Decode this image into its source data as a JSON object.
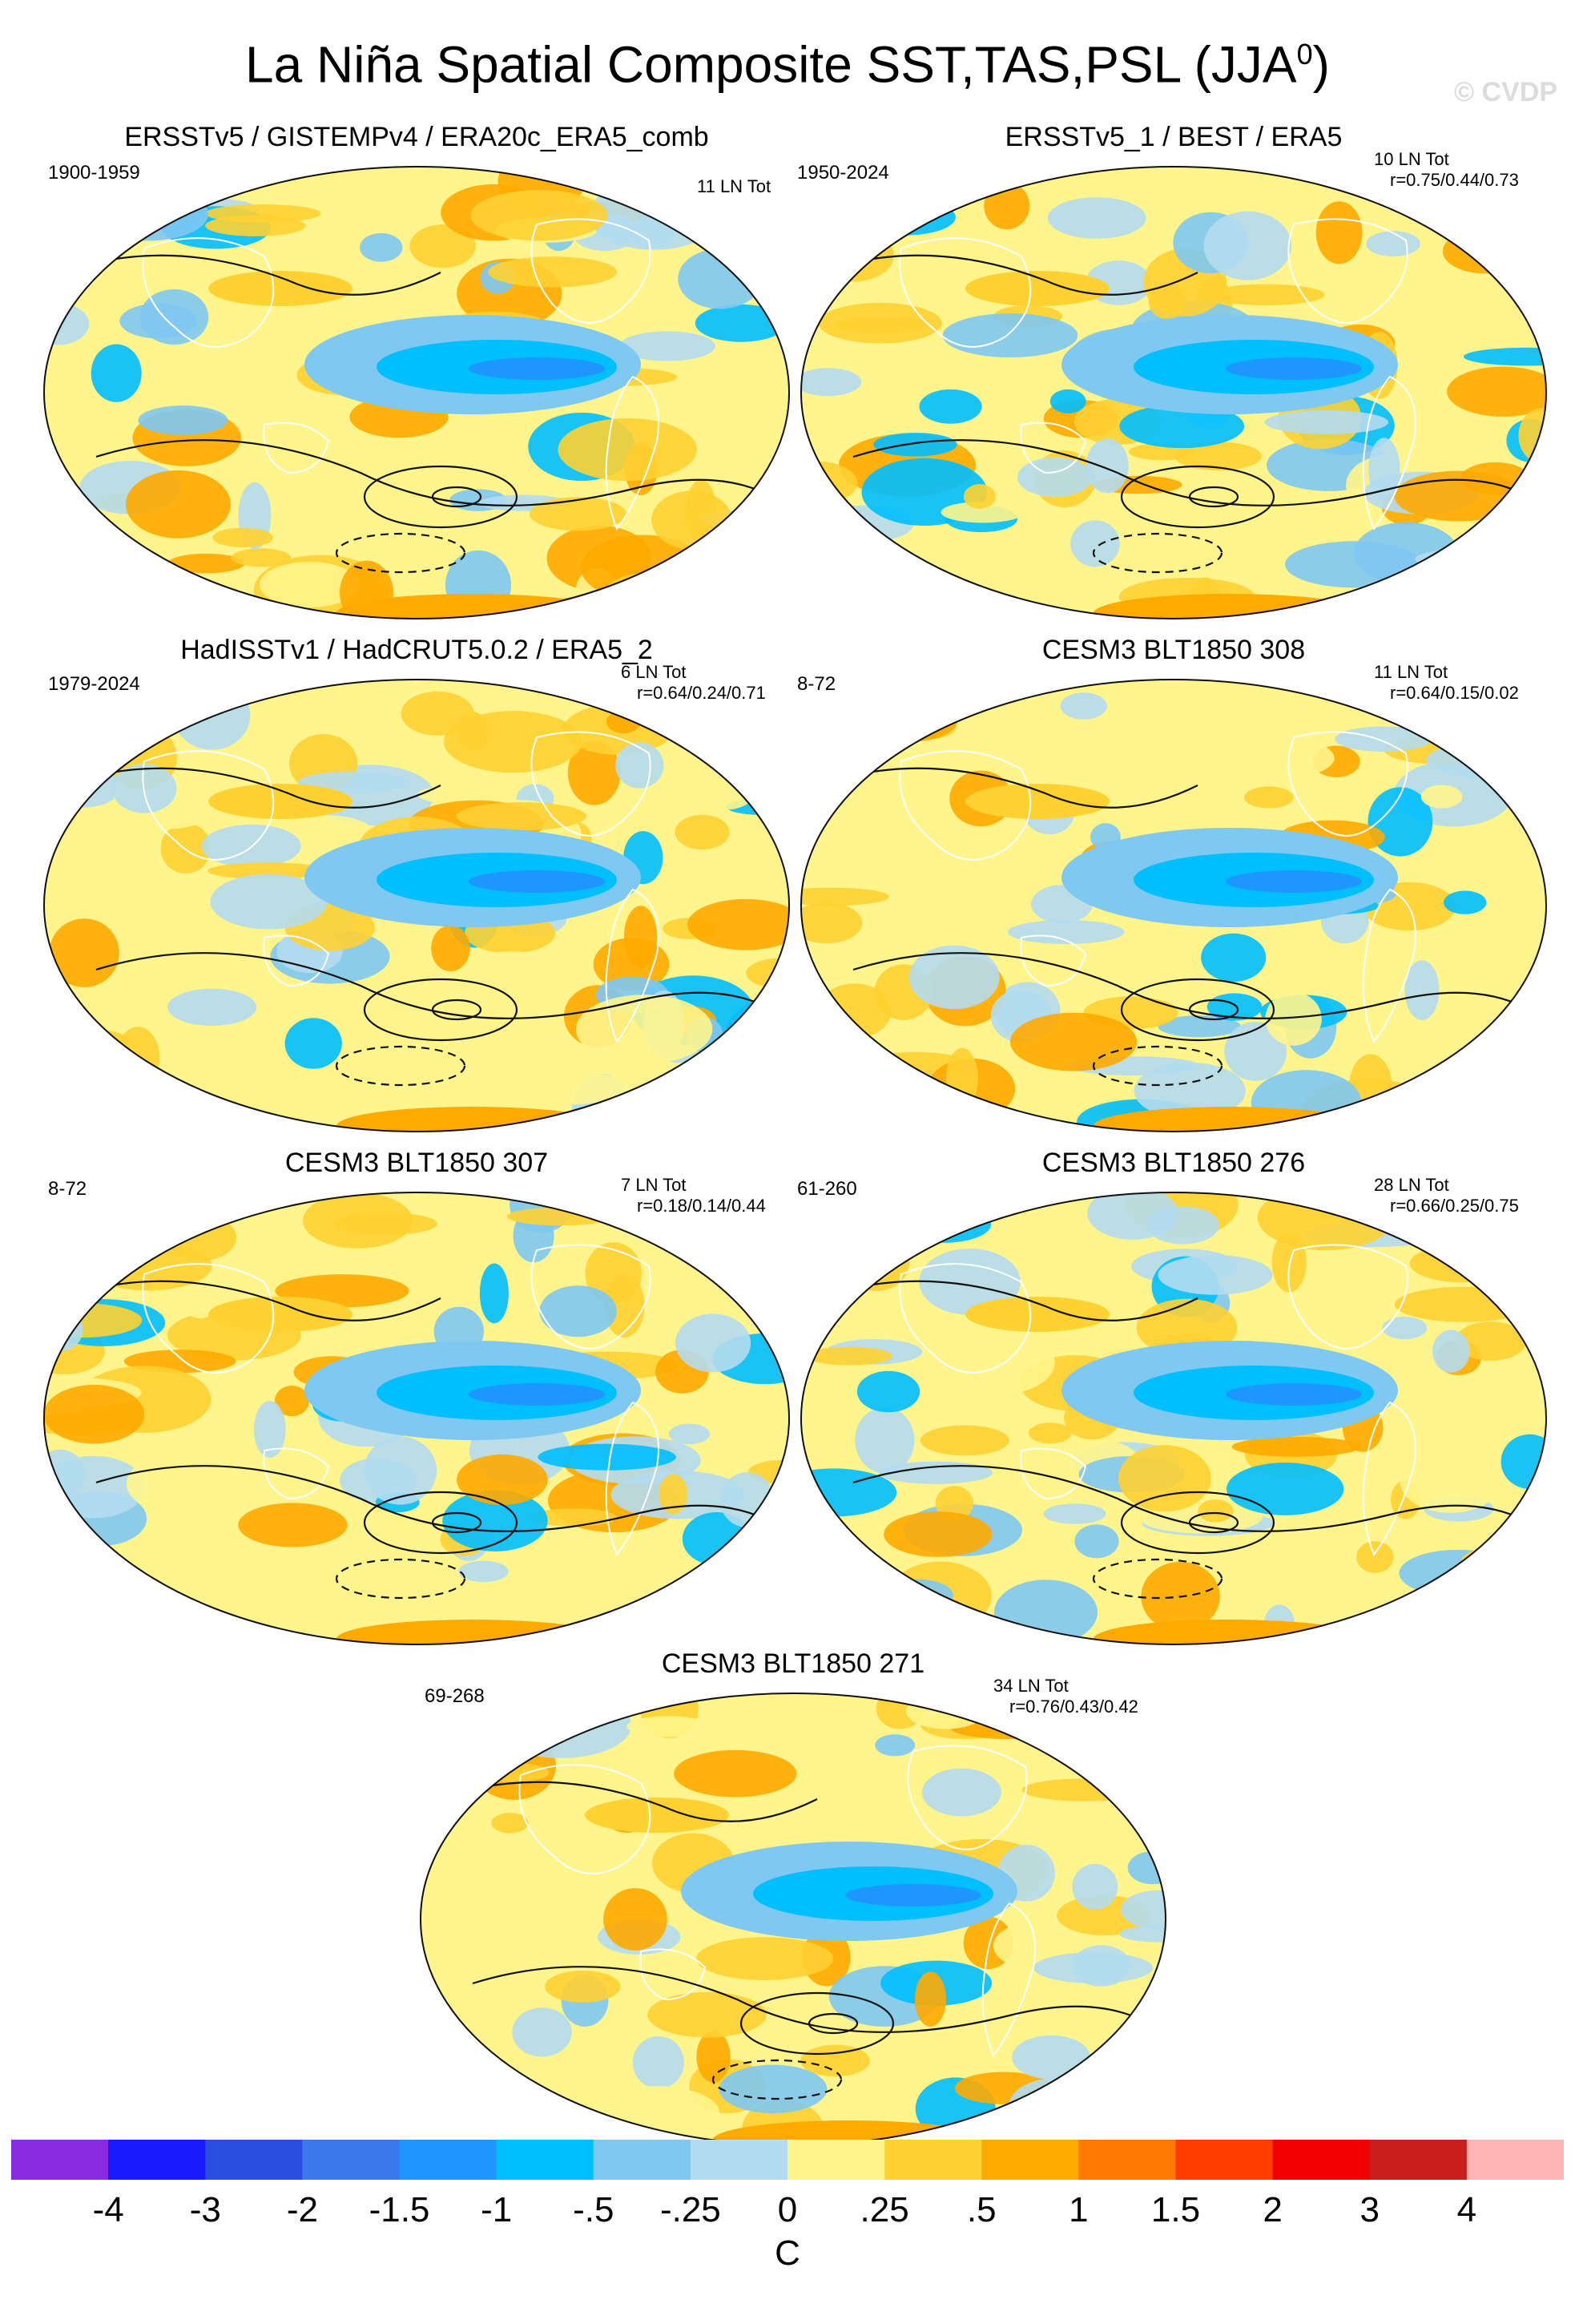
{
  "title": "La Niña Spatial Composite SST,TAS,PSL (JJA",
  "title_sup": "0",
  "title_close": ")",
  "watermark": "© CVDP",
  "panels": [
    {
      "title": "ERSSTv5 / GISTEMPv4 / ERA20c_ERA5_comb",
      "period": "1900-1959",
      "count": "11 LN Tot",
      "corr": ""
    },
    {
      "title": "ERSSTv5_1 / BEST / ERA5",
      "period": "1950-2024",
      "count": "10 LN Tot",
      "corr": "r=0.75/0.44/0.73"
    },
    {
      "title": "HadISSTv1 / HadCRUT5.0.2 / ERA5_2",
      "period": "1979-2024",
      "count": "6 LN Tot",
      "corr": "r=0.64/0.24/0.71"
    },
    {
      "title": "CESM3 BLT1850 308",
      "period": "8-72",
      "count": "11 LN Tot",
      "corr": "r=0.64/0.15/0.02"
    },
    {
      "title": "CESM3 BLT1850 307",
      "period": "8-72",
      "count": "7 LN Tot",
      "corr": "r=0.18/0.14/0.44"
    },
    {
      "title": "CESM3 BLT1850 276",
      "period": "61-260",
      "count": "28 LN Tot",
      "corr": "r=0.66/0.25/0.75"
    },
    {
      "title": "CESM3 BLT1850 271",
      "period": "69-268",
      "count": "34 LN Tot",
      "corr": "r=0.76/0.43/0.42"
    }
  ],
  "colorbar": {
    "colors": [
      "#8a2be2",
      "#1a1aff",
      "#2a4fe0",
      "#3a78ee",
      "#1e96ff",
      "#00bfff",
      "#7ec8f2",
      "#b4dcf0",
      "#fff58c",
      "#ffd232",
      "#ffaa00",
      "#ff7800",
      "#ff3c00",
      "#f00000",
      "#c81e1e",
      "#ffb4b4"
    ],
    "ticks": [
      "-4",
      "-3",
      "-2",
      "-1.5",
      "-1",
      "-.5",
      "-.25",
      "0",
      ".25",
      ".5",
      "1",
      "1.5",
      "2",
      "3",
      "4"
    ],
    "units": "C"
  }
}
